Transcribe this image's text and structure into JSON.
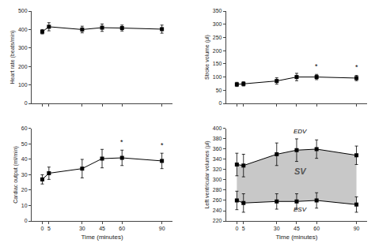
{
  "chart_data": [
    {
      "type": "line",
      "x": [
        0,
        5,
        30,
        45,
        60,
        90
      ],
      "series": [
        {
          "values": [
            388,
            415,
            400,
            410,
            408,
            402
          ],
          "error": [
            12,
            22,
            18,
            20,
            16,
            22
          ],
          "color": "black",
          "marker": "square",
          "line_style": "solid"
        }
      ],
      "y_label": "Heart rate (beats/min)",
      "xlim": [
        -8,
        98
      ],
      "xticks": [
        0,
        5,
        30,
        45,
        60,
        90
      ],
      "ylim": [
        0,
        500
      ],
      "yticks": [
        0,
        100,
        200,
        300,
        400,
        500
      ],
      "tick_labels": "y",
      "grid": false
    },
    {
      "type": "line",
      "x": [
        0,
        5,
        30,
        45,
        60,
        90
      ],
      "series": [
        {
          "values": [
            72,
            74,
            85,
            100,
            100,
            96
          ],
          "error": [
            8,
            8,
            12,
            14,
            10,
            10
          ],
          "color": "black",
          "marker": "square",
          "line_style": "solid"
        }
      ],
      "y_label": "Stroke volume (μl)",
      "xlim": [
        -8,
        98
      ],
      "xticks": [
        0,
        5,
        30,
        45,
        60,
        90
      ],
      "ylim": [
        0,
        350
      ],
      "yticks": [
        0,
        50,
        100,
        150,
        200,
        250,
        300,
        350
      ],
      "tick_labels": "y",
      "grid": false,
      "annotations": [
        {
          "text": "*",
          "x": 60
        },
        {
          "text": "*",
          "x": 90
        }
      ]
    },
    {
      "type": "line",
      "x": [
        0,
        5,
        30,
        45,
        60,
        90
      ],
      "series": [
        {
          "values": [
            27,
            31,
            34,
            40.5,
            41,
            39
          ],
          "error": [
            3,
            4,
            6,
            6,
            5,
            5
          ],
          "color": "black",
          "marker": "square",
          "line_style": "solid"
        }
      ],
      "y_label": "Cardiac output (ml/min)",
      "x_label": "Time (minutes)",
      "xlim": [
        -8,
        98
      ],
      "xticks": [
        0,
        5,
        30,
        45,
        60,
        90
      ],
      "ylim": [
        0,
        60
      ],
      "yticks": [
        0,
        10,
        20,
        30,
        40,
        50,
        60
      ],
      "grid": false,
      "annotations": [
        {
          "text": "*",
          "x": 60
        },
        {
          "text": "*",
          "x": 90
        }
      ]
    },
    {
      "type": "range",
      "x": [
        0,
        5,
        30,
        45,
        60,
        90
      ],
      "color": "#c8c8c8",
      "series": [
        {
          "values": [
            330,
            328,
            350,
            358,
            360,
            348
          ],
          "error": [
            22,
            22,
            22,
            22,
            18,
            18
          ],
          "color": "black",
          "marker": "square",
          "line_style": "solid"
        },
        {
          "values": [
            260,
            255,
            258,
            258,
            260,
            252
          ],
          "error": [
            18,
            18,
            15,
            15,
            15,
            15
          ],
          "color": "black",
          "marker": "square",
          "line_style": "solid"
        }
      ],
      "y_label": "Left ventricular volumes (μl)",
      "x_label": "Time (minutes)",
      "xlim": [
        -8,
        98
      ],
      "xticks": [
        0,
        5,
        30,
        45,
        60,
        90
      ],
      "ylim": [
        220,
        400
      ],
      "yticks": [
        220,
        240,
        260,
        280,
        300,
        320,
        340,
        360,
        380,
        400
      ],
      "grid": false,
      "annotations": [
        {
          "text": "EDV",
          "x": 48,
          "y": 385
        },
        {
          "text": "SV",
          "x": 48,
          "y": 305
        },
        {
          "text": "ESV",
          "x": 48,
          "y": 232
        }
      ]
    }
  ]
}
